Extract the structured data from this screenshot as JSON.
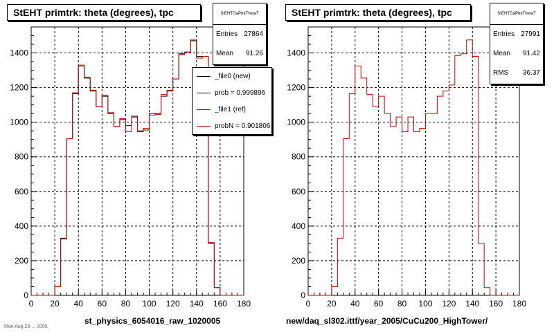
{
  "panels": [
    {
      "title": "StEHT primtrk: theta (degrees), tpc",
      "stats": {
        "name": "StEHTGaPtrkThetaT",
        "rows": [
          {
            "label": "Entries",
            "value": "27864"
          },
          {
            "label": "Mean",
            "value": "91.26"
          }
        ]
      },
      "legend": [
        {
          "label": "_file0 (new)",
          "color": "#000000"
        },
        {
          "label": "prob = 0.999896",
          "color": "#000000"
        },
        {
          "label": "_file1 (ref)",
          "color": "#cc0000"
        },
        {
          "label": "probN = 0.901806",
          "color": "#cc0000"
        }
      ],
      "xlabel": "st_physics_6054016_raw_1020005"
    },
    {
      "title": "StEHT primtrk: theta (degrees), tpc",
      "stats": {
        "name": "StEHTGaPtrkThetaT",
        "rows": [
          {
            "label": "Entries",
            "value": "27991"
          },
          {
            "label": "Mean",
            "value": "91.42"
          },
          {
            "label": "RMS",
            "value": "36.37"
          }
        ]
      },
      "xlabel": "new/daq_sl302.ittf/year_2005/CuCu200_HighTower/"
    }
  ],
  "footnote": "Mon Aug 29 ... 2005",
  "chart_data": [
    {
      "type": "histogram",
      "title": "StEHT primtrk: theta (degrees), tpc",
      "xlabel": "st_physics_6054016_raw_1020005",
      "xlim": [
        0,
        180
      ],
      "ylim": [
        0,
        1550
      ],
      "xticks": [
        0,
        20,
        40,
        60,
        80,
        100,
        120,
        140,
        160,
        180
      ],
      "yticks": [
        0,
        200,
        400,
        600,
        800,
        1000,
        1200,
        1400
      ],
      "bin_edges": [
        0,
        5,
        10,
        15,
        20,
        25,
        30,
        35,
        40,
        45,
        50,
        55,
        60,
        65,
        70,
        75,
        80,
        85,
        90,
        95,
        100,
        105,
        110,
        115,
        120,
        125,
        130,
        135,
        140,
        145,
        150,
        155,
        160,
        165,
        170,
        175,
        180
      ],
      "grid": true,
      "series": [
        {
          "name": "_file0 (new)",
          "color": "#000000",
          "values": [
            0,
            0,
            0,
            0,
            50,
            330,
            905,
            1165,
            1325,
            1255,
            1180,
            1090,
            1150,
            1050,
            975,
            1015,
            980,
            1030,
            950,
            955,
            1050,
            1050,
            1150,
            1180,
            1250,
            1395,
            1405,
            1470,
            1380,
            1380,
            300,
            45,
            0,
            0,
            0,
            0
          ]
        },
        {
          "name": "_file1 (ref)",
          "color": "#cc0000",
          "values": [
            0,
            0,
            0,
            0,
            50,
            325,
            905,
            1170,
            1330,
            1260,
            1185,
            1090,
            1155,
            1055,
            975,
            1020,
            945,
            1035,
            945,
            965,
            1040,
            1045,
            1160,
            1185,
            1250,
            1390,
            1405,
            1475,
            1370,
            1380,
            305,
            45,
            0,
            0,
            0,
            0
          ]
        }
      ]
    },
    {
      "type": "histogram",
      "title": "StEHT primtrk: theta (degrees), tpc",
      "xlabel": "new/daq_sl302.ittf/year_2005/CuCu200_HighTower/",
      "xlim": [
        0,
        180
      ],
      "ylim": [
        0,
        1550
      ],
      "xticks": [
        0,
        20,
        40,
        60,
        80,
        100,
        120,
        140,
        160,
        180
      ],
      "yticks": [
        0,
        200,
        400,
        600,
        800,
        1000,
        1200,
        1400
      ],
      "bin_edges": [
        0,
        5,
        10,
        15,
        20,
        25,
        30,
        35,
        40,
        45,
        50,
        55,
        60,
        65,
        70,
        75,
        80,
        85,
        90,
        95,
        100,
        105,
        110,
        115,
        120,
        125,
        130,
        135,
        140,
        145,
        150,
        155,
        160,
        165,
        170,
        175,
        180
      ],
      "grid": true,
      "series": [
        {
          "color": "#cc0000",
          "values": [
            0,
            0,
            0,
            0,
            50,
            330,
            905,
            1165,
            1325,
            1255,
            1160,
            1090,
            1150,
            1050,
            975,
            1030,
            945,
            1030,
            945,
            965,
            1050,
            1050,
            1150,
            1180,
            1215,
            1385,
            1395,
            1475,
            1380,
            300,
            45,
            0,
            0,
            0,
            0,
            0
          ]
        }
      ]
    }
  ]
}
